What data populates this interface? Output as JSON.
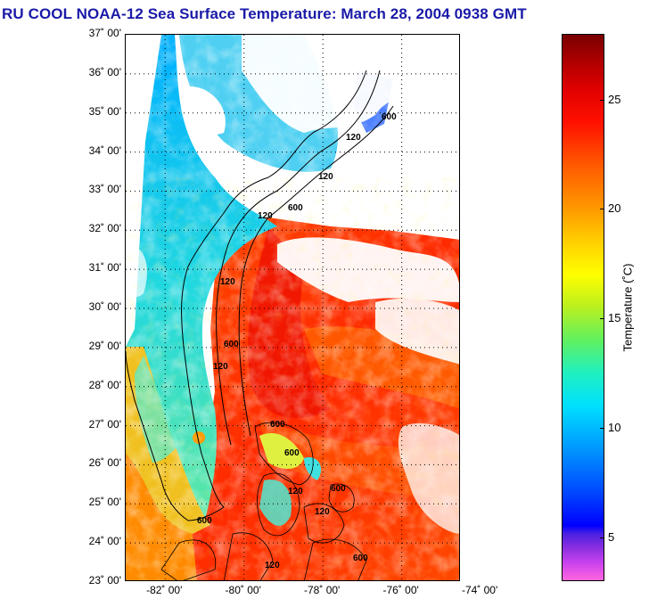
{
  "title": "RU COOL  NOAA-12  Sea Surface Temperature:  March 28, 2004 0938 GMT",
  "map": {
    "lat_labels": [
      "37˚ 00'",
      "36˚ 00'",
      "35˚ 00'",
      "34˚ 00'",
      "33˚ 00'",
      "32˚ 00'",
      "31˚ 00'",
      "30˚ 00'",
      "29˚ 00'",
      "28˚ 00'",
      "27˚ 00'",
      "26˚ 00'",
      "25˚ 00'",
      "24˚ 00'",
      "23˚ 00'"
    ],
    "lon_labels": [
      "-82˚ 00'",
      "-80˚ 00'",
      "-78˚ 00'",
      "-76˚ 00'",
      "-74˚ 00'"
    ],
    "lat_range": [
      23,
      37
    ],
    "lon_range": [
      -83,
      -74.5
    ],
    "contour_labels": [
      "600",
      "120",
      "120",
      "600",
      "120",
      "120",
      "600",
      "120",
      "600",
      "600",
      "120",
      "600",
      "120",
      "600",
      "120",
      "600"
    ],
    "colors": {
      "cold": "#00b4ff",
      "warm": "#ff3a00",
      "coast": "#000000"
    }
  },
  "colorbar": {
    "ticks": [
      "25",
      "20",
      "15",
      "10",
      "5"
    ],
    "label": "Temperature (˚C)",
    "range": [
      3,
      28
    ]
  }
}
